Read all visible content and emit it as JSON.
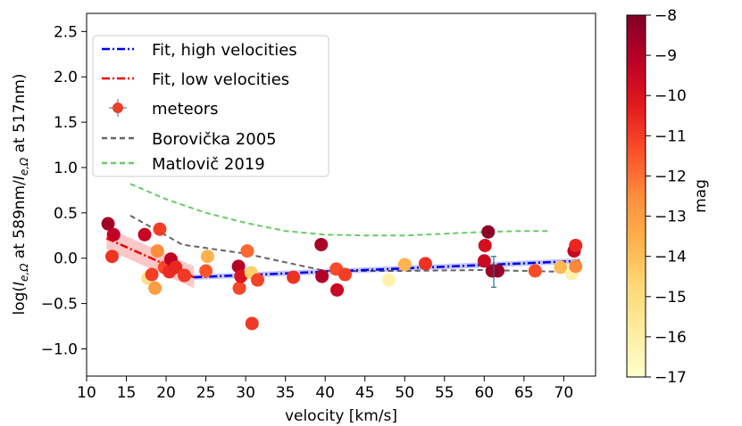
{
  "chart_data": {
    "type": "scatter",
    "xlabel": "velocity [km/s]",
    "ylabel": "log(I_e,Ω at 589nm/I_e,Ω at 517nm)",
    "ylabel_parts": {
      "pre": "log(",
      "i1": "I",
      "s1": "e,Ω",
      "mid": " at 589nm/",
      "i2": "I",
      "s2": "e,Ω",
      "post": " at 517nm)"
    },
    "xlim": [
      10,
      74
    ],
    "ylim": [
      -1.3,
      2.7
    ],
    "xticks": [
      "10",
      "15",
      "20",
      "25",
      "30",
      "35",
      "40",
      "45",
      "50",
      "55",
      "60",
      "65",
      "70"
    ],
    "yticks": [
      "−1.0",
      "−0.5",
      "0.0",
      "0.5",
      "1.0",
      "1.5",
      "2.0",
      "2.5"
    ],
    "colorbar": {
      "label": "mag",
      "range": [
        -17,
        -8
      ],
      "ticks": [
        "−8",
        "−9",
        "−10",
        "−11",
        "−12",
        "−13",
        "−14",
        "−15",
        "−16",
        "−17"
      ]
    },
    "legend": [
      {
        "label": "Fit, high velocities",
        "color": "#0000ee",
        "style": "dashdot"
      },
      {
        "label": "Fit, low velocities",
        "color": "#ee0000",
        "style": "dashdot"
      },
      {
        "label": "meteors",
        "color": "#e8402a",
        "style": "marker"
      },
      {
        "label": "Borovička 2005",
        "color": "#666666",
        "style": "dash"
      },
      {
        "label": "Matlovič 2019",
        "color": "#66cc66",
        "style": "dash"
      }
    ],
    "series": [
      {
        "name": "Fit, high velocities",
        "x": [
          23.5,
          72
        ],
        "y": [
          -0.21,
          -0.03
        ],
        "band_halfwidth": 0.03
      },
      {
        "name": "Fit, low velocities",
        "x": [
          12.5,
          23.5
        ],
        "y": [
          0.22,
          -0.21
        ],
        "band_halfwidth": 0.12
      },
      {
        "name": "Borovička 2005",
        "x": [
          15.5,
          20,
          22,
          30,
          40,
          50,
          60,
          70
        ],
        "y": [
          0.47,
          0.25,
          0.15,
          0.05,
          -0.14,
          -0.14,
          -0.13,
          -0.15
        ]
      },
      {
        "name": "Matlovič 2019",
        "x": [
          15.5,
          20,
          25,
          30,
          35,
          40,
          45,
          50,
          55,
          60,
          65,
          68
        ],
        "y": [
          0.82,
          0.65,
          0.5,
          0.39,
          0.3,
          0.26,
          0.25,
          0.25,
          0.27,
          0.29,
          0.3,
          0.3
        ]
      }
    ],
    "meteors": [
      {
        "x": 12.7,
        "y": 0.38,
        "mag": -8.6
      },
      {
        "x": 13.2,
        "y": 0.02,
        "mag": -10.8
      },
      {
        "x": 13.4,
        "y": 0.26,
        "mag": -9.2
      },
      {
        "x": 17.3,
        "y": 0.26,
        "mag": -9.4
      },
      {
        "x": 17.7,
        "y": -0.22,
        "mag": -15.2
      },
      {
        "x": 18.2,
        "y": -0.18,
        "mag": -11.0
      },
      {
        "x": 18.6,
        "y": -0.33,
        "mag": -13.0
      },
      {
        "x": 18.9,
        "y": 0.08,
        "mag": -12.5
      },
      {
        "x": 19.2,
        "y": 0.32,
        "mag": -11.0
      },
      {
        "x": 19.8,
        "y": -0.1,
        "mag": -11.2
      },
      {
        "x": 20.4,
        "y": -0.15,
        "mag": -10.6
      },
      {
        "x": 20.6,
        "y": -0.01,
        "mag": -9.2
      },
      {
        "x": 21.2,
        "y": -0.1,
        "mag": -10.5
      },
      {
        "x": 22.3,
        "y": -0.19,
        "mag": -10.9
      },
      {
        "x": 25.0,
        "y": -0.14,
        "mag": -11.5
      },
      {
        "x": 25.2,
        "y": 0.02,
        "mag": -13.6
      },
      {
        "x": 29.1,
        "y": -0.09,
        "mag": -9.0
      },
      {
        "x": 29.2,
        "y": -0.33,
        "mag": -11.2
      },
      {
        "x": 29.4,
        "y": -0.2,
        "mag": -10.0
      },
      {
        "x": 30.2,
        "y": 0.08,
        "mag": -11.8
      },
      {
        "x": 30.7,
        "y": -0.16,
        "mag": -14.5
      },
      {
        "x": 30.8,
        "y": -0.72,
        "mag": -10.9
      },
      {
        "x": 31.5,
        "y": -0.24,
        "mag": -11.1
      },
      {
        "x": 36.0,
        "y": -0.21,
        "mag": -10.8
      },
      {
        "x": 39.5,
        "y": 0.15,
        "mag": -8.8
      },
      {
        "x": 39.6,
        "y": -0.2,
        "mag": -8.9
      },
      {
        "x": 41.4,
        "y": -0.12,
        "mag": -11.3
      },
      {
        "x": 41.5,
        "y": -0.35,
        "mag": -9.5
      },
      {
        "x": 42.5,
        "y": -0.18,
        "mag": -11.0
      },
      {
        "x": 48.0,
        "y": -0.24,
        "mag": -16.2
      },
      {
        "x": 50.0,
        "y": -0.07,
        "mag": -13.7
      },
      {
        "x": 52.6,
        "y": -0.06,
        "mag": -10.8
      },
      {
        "x": 60.0,
        "y": -0.03,
        "mag": -9.5
      },
      {
        "x": 60.1,
        "y": 0.14,
        "mag": -9.8
      },
      {
        "x": 60.5,
        "y": 0.29,
        "mag": -8.2
      },
      {
        "x": 61.0,
        "y": -0.14,
        "mag": -8.6
      },
      {
        "x": 61.7,
        "y": -0.14,
        "mag": -8.4
      },
      {
        "x": 66.4,
        "y": -0.14,
        "mag": -11.3
      },
      {
        "x": 69.6,
        "y": -0.1,
        "mag": -13.8
      },
      {
        "x": 71.0,
        "y": -0.17,
        "mag": -16.1
      },
      {
        "x": 71.3,
        "y": 0.08,
        "mag": -9.4
      },
      {
        "x": 71.5,
        "y": 0.14,
        "mag": -10.5
      },
      {
        "x": 71.5,
        "y": -0.09,
        "mag": -12.4
      }
    ],
    "error_bar": {
      "x": 61.2,
      "y": -0.15,
      "yerr": 0.17
    }
  }
}
